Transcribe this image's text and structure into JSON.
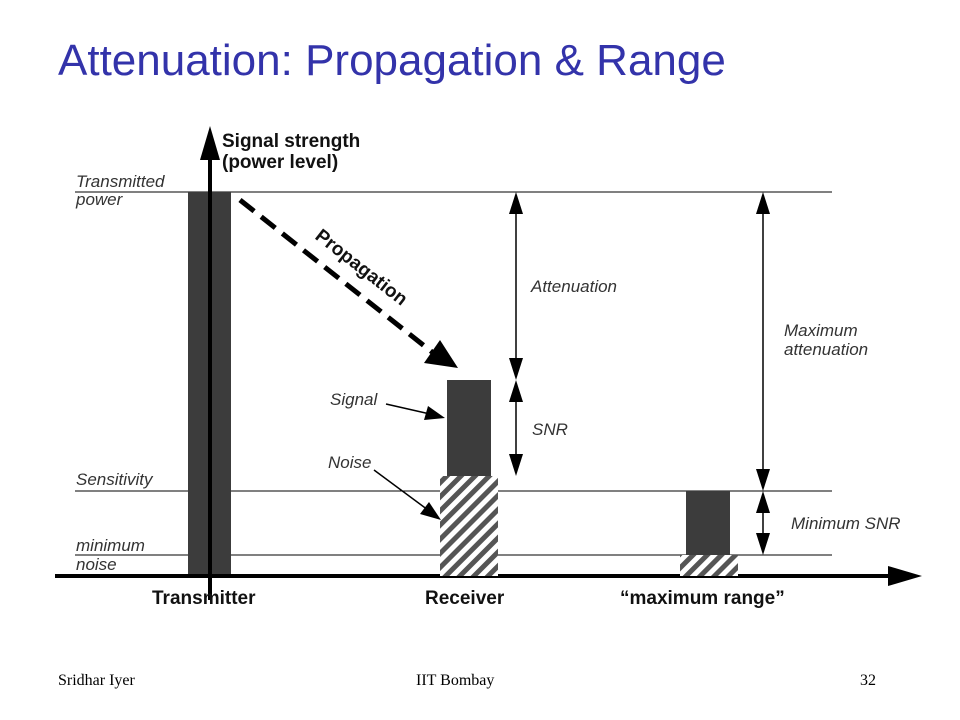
{
  "slide": {
    "title": "Attenuation: Propagation & Range"
  },
  "diagram": {
    "y_axis_label_line1": "Signal strength",
    "y_axis_label_line2": "(power level)",
    "levels": {
      "transmitted_power_line1": "Transmitted",
      "transmitted_power_line2": "power",
      "sensitivity": "Sensitivity",
      "minimum_noise_line1": "minimum",
      "minimum_noise_line2": "noise"
    },
    "propagation": "Propagation",
    "attenuation": "Attenuation",
    "snr": "SNR",
    "signal": "Signal",
    "noise": "Noise",
    "maximum_attenuation_line1": "Maximum",
    "maximum_attenuation_line2": "attenuation",
    "minimum_snr": "Minimum SNR",
    "x_labels": {
      "transmitter": "Transmitter",
      "receiver": "Receiver",
      "maximum_range": "“maximum range”"
    },
    "colors": {
      "bar": "#3c3c3c",
      "line": "#000000",
      "hatch": "#555555"
    }
  },
  "footer": {
    "author": "Sridhar Iyer",
    "institution": "IIT Bombay",
    "page_number": "32"
  }
}
